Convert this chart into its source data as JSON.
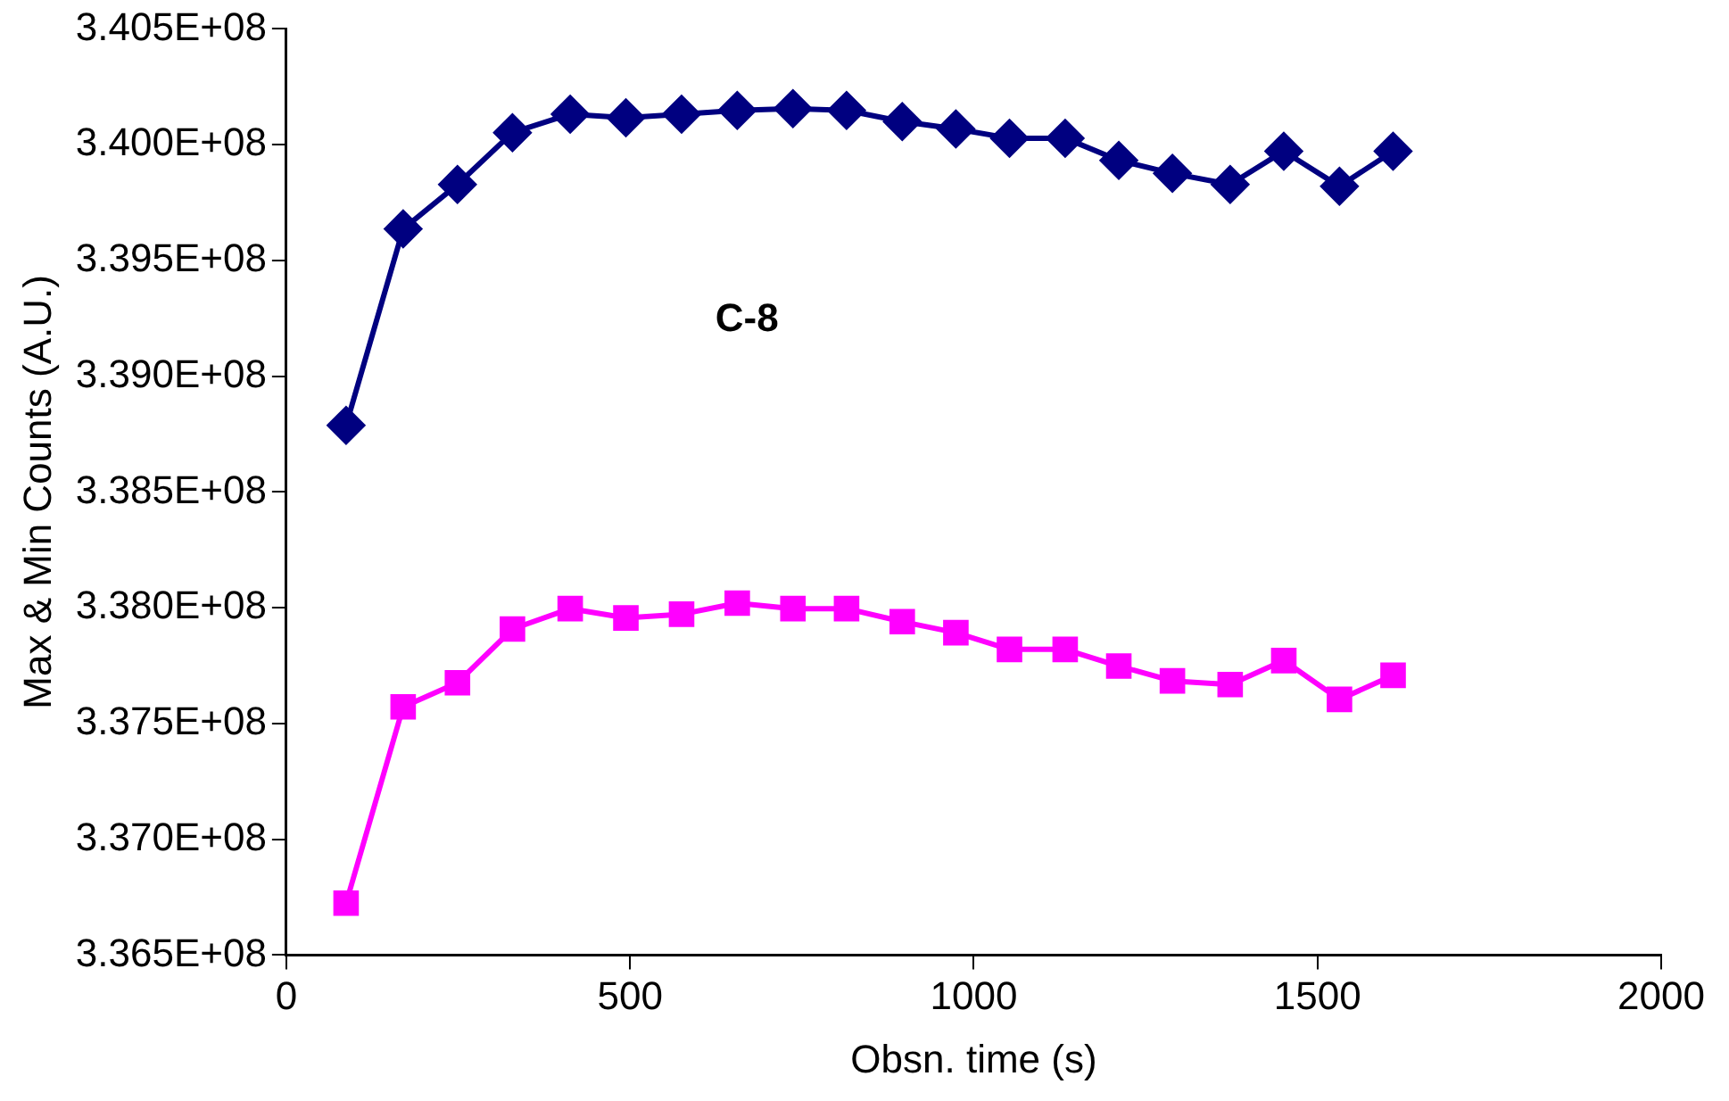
{
  "chart_data": {
    "type": "line",
    "xlabel": "Obsn. time (s)",
    "ylabel": "Max & Min Counts (A.U.)",
    "annotations": [
      "C-8"
    ],
    "grid": false,
    "legend": false,
    "line_style": "solid",
    "x": [
      87,
      170,
      249,
      329,
      413,
      494,
      575,
      656,
      737,
      815,
      896,
      974,
      1052,
      1133,
      1211,
      1289,
      1373,
      1451,
      1532,
      1610
    ],
    "xlim": [
      0,
      2000
    ],
    "xticks": [
      0,
      500,
      1000,
      1500,
      2000
    ],
    "ylim": [
      336500000,
      340500000
    ],
    "yticks": [
      {
        "value": 336500000,
        "label": "3.365E+08"
      },
      {
        "value": 337000000,
        "label": "3.370E+08"
      },
      {
        "value": 337500000,
        "label": "3.375E+08"
      },
      {
        "value": 338000000,
        "label": "3.380E+08"
      },
      {
        "value": 338500000,
        "label": "3.385E+08"
      },
      {
        "value": 339000000,
        "label": "3.390E+08"
      },
      {
        "value": 339500000,
        "label": "3.395E+08"
      },
      {
        "value": 340000000,
        "label": "3.400E+08"
      },
      {
        "value": 340500000,
        "label": "3.405E+08"
      }
    ],
    "series": [
      {
        "color": "#000080",
        "marker": "diamond",
        "values": [
          338788000,
          339636000,
          339828000,
          340052000,
          340132000,
          340116000,
          340132000,
          340148000,
          340156000,
          340148000,
          340100000,
          340068000,
          340028000,
          340028000,
          339932000,
          339876000,
          339828000,
          339972000,
          339820000,
          339972000
        ]
      },
      {
        "color": "#ff00ff",
        "marker": "square",
        "values": [
          336724000,
          337572000,
          337676000,
          337908000,
          337996000,
          337956000,
          337972000,
          338020000,
          337996000,
          337996000,
          337940000,
          337892000,
          337820000,
          337820000,
          337748000,
          337684000,
          337668000,
          337772000,
          337604000,
          337708000
        ]
      }
    ]
  }
}
